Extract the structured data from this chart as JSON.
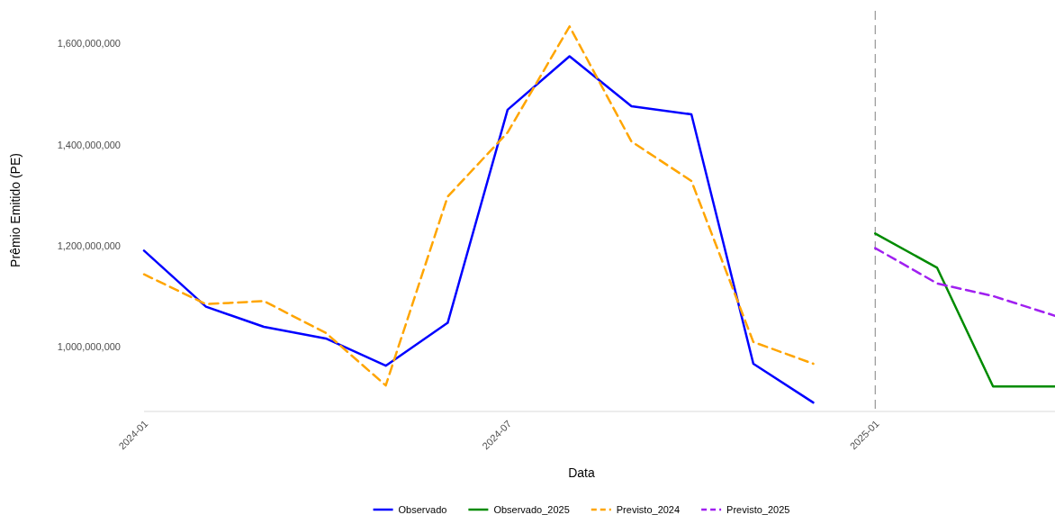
{
  "chart_data": {
    "type": "line",
    "xlabel": "Data",
    "ylabel": "Prêmio Emitido (PE)",
    "xlim": [
      "2024-01",
      "2025-04"
    ],
    "ylim": [
      875000000,
      1665000000
    ],
    "xticks": [
      {
        "value": "2024-01",
        "label": "2024-01"
      },
      {
        "value": "2024-07",
        "label": "2024-07"
      },
      {
        "value": "2025-01",
        "label": "2025-01"
      }
    ],
    "yticks": [
      {
        "value": 1000000000,
        "label": "1,000,000,000"
      },
      {
        "value": 1200000000,
        "label": "1,200,000,000"
      },
      {
        "value": 1400000000,
        "label": "1,400,000,000"
      },
      {
        "value": 1600000000,
        "label": "1,600,000,000"
      }
    ],
    "grid": false,
    "legend": "bottom",
    "ref_lines": [
      {
        "axis": "x",
        "value": "2025-01",
        "label": null,
        "color": "#808080",
        "line_style": "dashed"
      }
    ],
    "series": [
      {
        "name": "Observado",
        "color": "#0000ff",
        "line_style": "solid",
        "x": [
          "2024-01",
          "2024-02",
          "2024-03",
          "2024-04",
          "2024-05",
          "2024-06",
          "2024-07",
          "2024-08",
          "2024-09",
          "2024-10",
          "2024-11",
          "2024-12"
        ],
        "values": [
          1190000000,
          1079000000,
          1039000000,
          1016000000,
          962000000,
          1047000000,
          1469000000,
          1575000000,
          1476000000,
          1460000000,
          966000000,
          889000000
        ]
      },
      {
        "name": "Observado_2025",
        "color": "#008b00",
        "line_style": "solid",
        "x": [
          "2025-01",
          "2025-02",
          "2025-03",
          "2025-04"
        ],
        "values": [
          1224000000,
          1156000000,
          921000000,
          921000000
        ]
      },
      {
        "name": "Previsto_2024",
        "color": "#ffa500",
        "line_style": "dashed",
        "x": [
          "2024-01",
          "2024-02",
          "2024-03",
          "2024-04",
          "2024-05",
          "2024-06",
          "2024-07",
          "2024-08",
          "2024-09",
          "2024-10",
          "2024-11",
          "2024-12"
        ],
        "values": [
          1143000000,
          1084000000,
          1090000000,
          1027000000,
          923000000,
          1297000000,
          1424000000,
          1634000000,
          1406000000,
          1328000000,
          1009000000,
          966000000
        ]
      },
      {
        "name": "Previsto_2025",
        "color": "#a020f0",
        "line_style": "dashed",
        "x": [
          "2025-01",
          "2025-02",
          "2025-03",
          "2025-04"
        ],
        "values": [
          1195000000,
          1125000000,
          1100000000,
          1061000000
        ]
      }
    ]
  }
}
